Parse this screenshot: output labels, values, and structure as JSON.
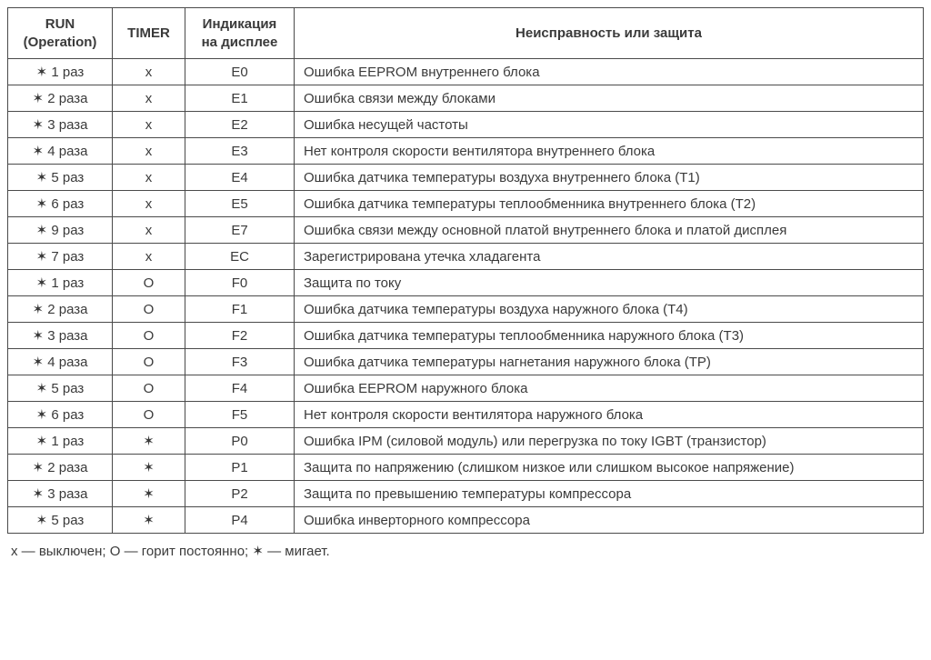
{
  "table": {
    "columns": [
      {
        "label": "RUN\n(Operation)",
        "class": "col-run"
      },
      {
        "label": "TIMER",
        "class": "col-timer"
      },
      {
        "label": "Индикация\nна дисплее",
        "class": "col-display"
      },
      {
        "label": "Неисправность или защита",
        "class": "col-fault"
      }
    ],
    "rows": [
      {
        "run": "✶ 1 раз",
        "timer": "x",
        "display": "E0",
        "fault": "Ошибка EEPROM внутреннего блока"
      },
      {
        "run": "✶ 2 раза",
        "timer": "x",
        "display": "E1",
        "fault": "Ошибка связи между блоками"
      },
      {
        "run": "✶ 3 раза",
        "timer": "x",
        "display": "E2",
        "fault": "Ошибка несущей частоты"
      },
      {
        "run": "✶ 4 раза",
        "timer": "x",
        "display": "E3",
        "fault": "Нет контроля скорости вентилятора внутреннего блока"
      },
      {
        "run": "✶ 5 раз",
        "timer": "x",
        "display": "E4",
        "fault": "Ошибка датчика температуры воздуха внутреннего блока (T1)"
      },
      {
        "run": "✶ 6 раз",
        "timer": "x",
        "display": "E5",
        "fault": "Ошибка датчика температуры теплообменника внутреннего блока (T2)"
      },
      {
        "run": "✶ 9 раз",
        "timer": "x",
        "display": "E7",
        "fault": "Ошибка связи между основной платой внутреннего блока и платой дисплея"
      },
      {
        "run": "✶ 7 раз",
        "timer": "x",
        "display": "EC",
        "fault": "Зарегистрирована утечка хладагента"
      },
      {
        "run": "✶ 1 раз",
        "timer": "O",
        "display": "F0",
        "fault": "Защита по току"
      },
      {
        "run": "✶ 2 раза",
        "timer": "O",
        "display": "F1",
        "fault": "Ошибка датчика температуры воздуха наружного блока (T4)"
      },
      {
        "run": "✶ 3 раза",
        "timer": "O",
        "display": "F2",
        "fault": "Ошибка датчика температуры теплообменника наружного блока (T3)"
      },
      {
        "run": "✶ 4 раза",
        "timer": "O",
        "display": "F3",
        "fault": "Ошибка датчика температуры нагнетания наружного блока (TP)"
      },
      {
        "run": "✶ 5 раз",
        "timer": "O",
        "display": "F4",
        "fault": "Ошибка EEPROM наружного блока"
      },
      {
        "run": "✶ 6 раз",
        "timer": "O",
        "display": "F5",
        "fault": "Нет контроля скорости вентилятора наружного блока"
      },
      {
        "run": "✶ 1 раз",
        "timer": "✶",
        "display": "P0",
        "fault": "Ошибка IPM (силовой модуль) или перегрузка по току IGBT (транзистор)"
      },
      {
        "run": "✶ 2 раза",
        "timer": "✶",
        "display": "P1",
        "fault": "Защита по напряжению (слишком низкое или слишком высокое напряжение)"
      },
      {
        "run": "✶ 3 раза",
        "timer": "✶",
        "display": "P2",
        "fault": "Защита по превышению температуры компрессора"
      },
      {
        "run": "✶ 5 раз",
        "timer": "✶",
        "display": "P4",
        "fault": "Ошибка инверторного компрессора"
      }
    ]
  },
  "footnote": "x — выключен; O — горит постоянно; ✶ — мигает.",
  "styling": {
    "background_color": "#ffffff",
    "border_color": "#4a4a4a",
    "text_color": "#3a3a3a",
    "font_family": "Arial, Helvetica, sans-serif",
    "header_fontsize": 15,
    "cell_fontsize": 15,
    "footnote_fontsize": 15,
    "column_widths": {
      "run": 115,
      "timer": 80,
      "display": 120
    },
    "cell_alignment": {
      "run": "center",
      "timer": "center",
      "display": "center",
      "fault": "left"
    }
  }
}
